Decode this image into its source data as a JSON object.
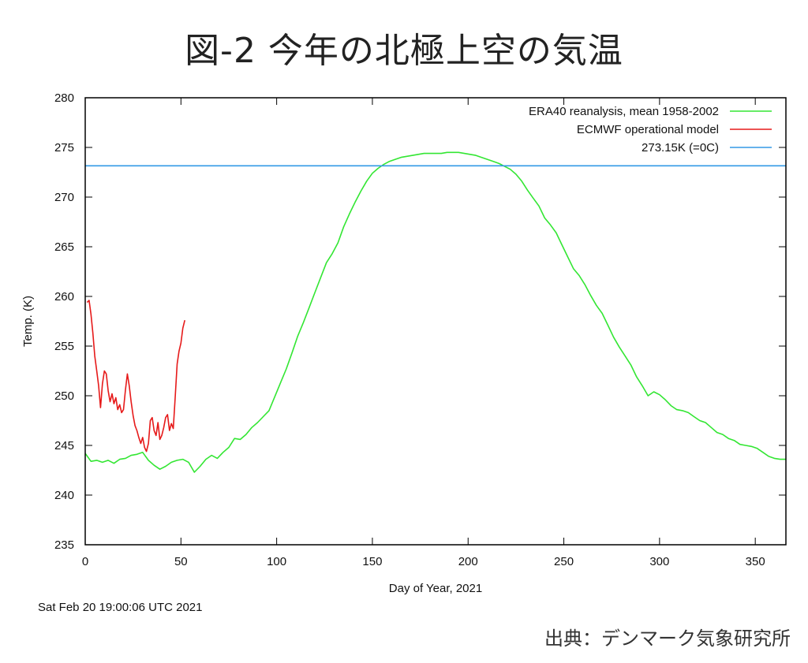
{
  "title": "図-2 今年の北極上空の気温",
  "timestamp": "Sat Feb 20 19:00:06 UTC 2021",
  "source": "出典：デンマーク気象研究所",
  "colors": {
    "mean": "#33e633",
    "model": "#e61a1a",
    "freezing": "#3399e6"
  },
  "chart_data": {
    "type": "line",
    "xlabel": "Day of Year, 2021",
    "ylabel": "Temp. (K)",
    "xlim": [
      0,
      366
    ],
    "ylim": [
      235,
      280
    ],
    "xticks": [
      0,
      50,
      100,
      150,
      200,
      250,
      300,
      350
    ],
    "yticks": [
      235,
      240,
      245,
      250,
      255,
      260,
      265,
      270,
      275,
      280
    ],
    "grid": false,
    "legend": "top-right",
    "series": [
      {
        "name": "ERA40 reanalysis, mean 1958-2002",
        "color": "#33e633",
        "x": [
          0,
          3,
          6,
          9,
          12,
          15,
          18,
          21,
          24,
          27,
          30,
          33,
          36,
          39,
          42,
          45,
          48,
          51,
          54,
          57,
          60,
          63,
          66,
          69,
          72,
          75,
          78,
          81,
          84,
          87,
          90,
          93,
          96,
          99,
          102,
          105,
          108,
          111,
          114,
          117,
          120,
          123,
          126,
          129,
          132,
          135,
          138,
          141,
          144,
          147,
          150,
          153,
          156,
          159,
          162,
          165,
          168,
          171,
          174,
          177,
          180,
          183,
          186,
          189,
          192,
          195,
          198,
          201,
          204,
          207,
          210,
          213,
          216,
          219,
          222,
          225,
          228,
          231,
          234,
          237,
          240,
          243,
          246,
          249,
          252,
          255,
          258,
          261,
          264,
          267,
          270,
          273,
          276,
          279,
          282,
          285,
          288,
          291,
          294,
          297,
          300,
          303,
          306,
          309,
          312,
          315,
          318,
          321,
          324,
          327,
          330,
          333,
          336,
          339,
          342,
          345,
          348,
          351,
          354,
          357,
          360,
          363,
          366
        ],
        "y": [
          244.2,
          243.4,
          243.5,
          243.3,
          243.5,
          243.2,
          243.6,
          243.7,
          244.0,
          244.1,
          244.3,
          243.5,
          243.0,
          242.6,
          242.9,
          243.3,
          243.5,
          243.6,
          243.3,
          242.3,
          242.9,
          243.6,
          244.0,
          243.7,
          244.3,
          244.8,
          245.7,
          245.6,
          246.1,
          246.8,
          247.3,
          247.9,
          248.5,
          249.9,
          251.3,
          252.7,
          254.3,
          256.0,
          257.4,
          258.9,
          260.4,
          261.9,
          263.4,
          264.3,
          265.4,
          267.0,
          268.3,
          269.5,
          270.6,
          271.6,
          272.4,
          272.9,
          273.3,
          273.6,
          273.8,
          274.0,
          274.1,
          274.2,
          274.3,
          274.4,
          274.4,
          274.4,
          274.4,
          274.5,
          274.5,
          274.5,
          274.4,
          274.3,
          274.2,
          274.0,
          273.8,
          273.6,
          273.4,
          273.1,
          272.8,
          272.3,
          271.6,
          270.7,
          269.9,
          269.1,
          267.9,
          267.2,
          266.4,
          265.2,
          264.0,
          262.8,
          262.1,
          261.2,
          260.1,
          259.1,
          258.3,
          257.1,
          255.9,
          254.9,
          254.0,
          253.1,
          251.9,
          251.0,
          250.0,
          250.4,
          250.1,
          249.6,
          249.0,
          248.6,
          248.5,
          248.3,
          247.9,
          247.5,
          247.3,
          246.8,
          246.3,
          246.1,
          245.7,
          245.5,
          245.1,
          245.0,
          244.9,
          244.7,
          244.3,
          243.9,
          243.7,
          243.6,
          243.6
        ]
      },
      {
        "name": "ECMWF operational model",
        "color": "#e61a1a",
        "x": [
          1,
          2,
          3,
          4,
          5,
          6,
          7,
          8,
          9,
          10,
          11,
          12,
          13,
          14,
          15,
          16,
          17,
          18,
          19,
          20,
          21,
          22,
          23,
          24,
          25,
          26,
          27,
          28,
          29,
          30,
          31,
          32,
          33,
          34,
          35,
          36,
          37,
          38,
          39,
          40,
          41,
          42,
          43,
          44,
          45,
          46,
          47,
          48,
          49,
          50,
          51,
          52
        ],
        "y": [
          259.4,
          259.6,
          258.2,
          256.3,
          254.0,
          252.5,
          251.0,
          248.8,
          251.2,
          252.5,
          252.2,
          250.5,
          249.4,
          250.2,
          249.2,
          249.8,
          248.6,
          249.1,
          248.3,
          248.6,
          250.6,
          252.2,
          251.0,
          249.4,
          248.0,
          247.0,
          246.5,
          245.8,
          245.2,
          245.8,
          244.8,
          244.4,
          245.2,
          247.5,
          247.8,
          246.5,
          246.0,
          247.3,
          245.6,
          246.0,
          246.8,
          247.8,
          248.1,
          246.5,
          247.2,
          246.7,
          249.8,
          253.2,
          254.5,
          255.3,
          256.8,
          257.6
        ]
      },
      {
        "name": "273.15K (=0C)",
        "color": "#3399e6",
        "x": [
          0,
          366
        ],
        "y": [
          273.15,
          273.15
        ]
      }
    ]
  }
}
